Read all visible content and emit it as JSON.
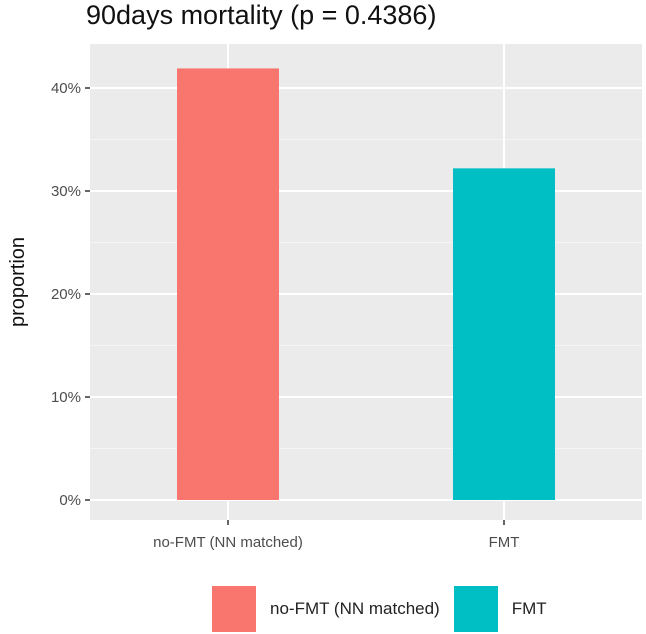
{
  "chart_data": {
    "type": "bar",
    "title": "90days mortality (p = 0.4386)",
    "ylabel": "proportion",
    "xlabel": "",
    "categories": [
      "no-FMT (NN matched)",
      "FMT"
    ],
    "values": [
      0.419,
      0.322
    ],
    "colors": [
      "#F8766D",
      "#00BFC4"
    ],
    "ylim": [
      0,
      0.43
    ],
    "yticks": [
      0,
      0.1,
      0.2,
      0.3,
      0.4
    ],
    "ytick_labels": [
      "0%",
      "10%",
      "20%",
      "30%",
      "40%"
    ],
    "grid": true,
    "legend": {
      "position": "bottom",
      "entries": [
        "no-FMT (NN matched)",
        "FMT"
      ]
    }
  }
}
